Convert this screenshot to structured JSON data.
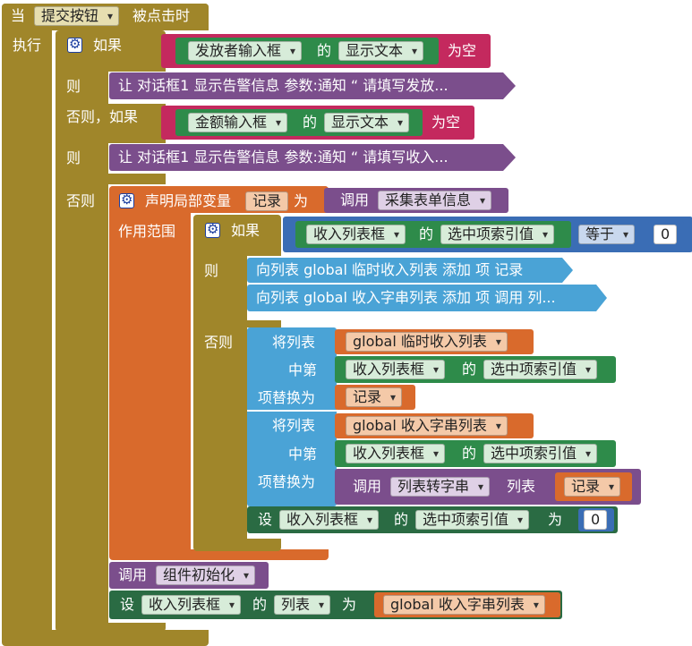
{
  "event": {
    "when": "当",
    "component": "提交按钮",
    "event_name": "被点击时",
    "do": "执行"
  },
  "if1": {
    "if_label": "如果",
    "component": "发放者输入框",
    "of": "的",
    "prop": "显示文本",
    "is_empty": "为空",
    "then": "则",
    "call_text": "让 对话框1 显示告警信息 参数:通知 “ 请填写发放..."
  },
  "elseif": {
    "label": "否则，如果",
    "component": "金额输入框",
    "of": "的",
    "prop": "显示文本",
    "is_empty": "为空",
    "then": "则",
    "call_text": "让 对话框1 显示告警信息 参数:通知 “ 请填写收入..."
  },
  "else_block": {
    "else": "否则",
    "declare": "声明局部变量",
    "var": "记录",
    "as": "为",
    "call": "调用",
    "proc": "采集表单信息",
    "scope": "作用范围",
    "inner_if": {
      "if_label": "如果",
      "component": "收入列表框",
      "of": "的",
      "prop": "选中项索引值",
      "op": "等于",
      "num": "0",
      "then": "则",
      "then_line1": "向列表 global 临时收入列表 添加 项 记录",
      "then_line2": "向列表 global 收入字串列表 添加 项 调用 列...",
      "else": "否则",
      "replace1": {
        "list_label": "将列表",
        "list": "global 临时收入列表",
        "index_label": "中第",
        "component": "收入列表框",
        "of": "的",
        "prop": "选中项索引值",
        "item_label": "项替换为",
        "item": "记录"
      },
      "replace2": {
        "list_label": "将列表",
        "list": "global 收入字串列表",
        "index_label": "中第",
        "component": "收入列表框",
        "of": "的",
        "prop": "选中项索引值",
        "item_label": "项替换为",
        "call": "调用",
        "proc": "列表转字串",
        "arg_label": "列表",
        "arg": "记录"
      },
      "set": {
        "set": "设",
        "component": "收入列表框",
        "of": "的",
        "prop": "选中项索引值",
        "to": "为",
        "num": "0"
      }
    }
  },
  "after": {
    "call": "调用",
    "proc": "组件初始化",
    "set": "设",
    "component": "收入列表框",
    "of": "的",
    "prop": "列表",
    "to": "为",
    "value": "global 收入字串列表"
  }
}
